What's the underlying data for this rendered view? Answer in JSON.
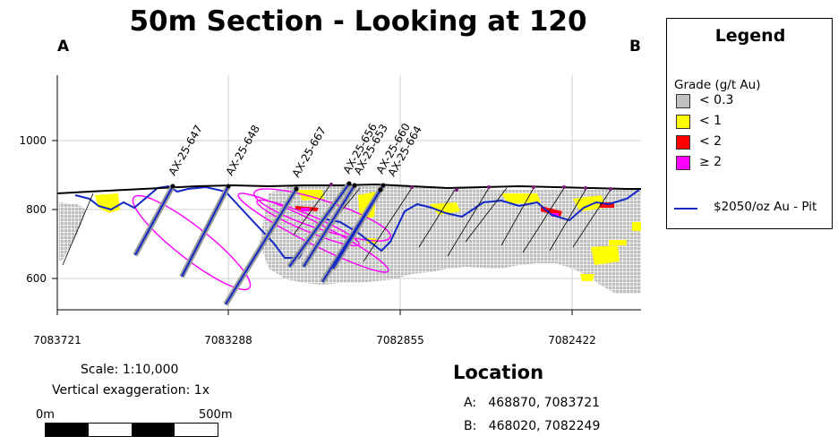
{
  "title": "50m Section - Looking at 120",
  "endpoints": {
    "start": "A",
    "end": "B"
  },
  "axes": {
    "y_ticks": [
      "1000",
      "800",
      "600"
    ],
    "x_ticks": [
      "7083721",
      "7083288",
      "7082855",
      "7082422"
    ]
  },
  "drillholes": [
    {
      "name": "AX-25-647"
    },
    {
      "name": "AX-25-648"
    },
    {
      "name": "AX-25-667"
    },
    {
      "name": "AX-25-656"
    },
    {
      "name": "AX-25-653"
    },
    {
      "name": "AX-25-660"
    },
    {
      "name": "AX-25-664"
    }
  ],
  "legend": {
    "title": "Legend",
    "subtitle": "Grade (g/t Au)",
    "items": [
      {
        "label": "< 0.3",
        "color": "#c0c0c0"
      },
      {
        "label": "< 1",
        "color": "#ffff00"
      },
      {
        "label": "< 2",
        "color": "#ff0000"
      },
      {
        "label": "≥ 2",
        "color": "#ff00ff"
      }
    ],
    "pit_label": "$2050/oz Au - Pit",
    "pit_color": "#1428c8"
  },
  "scale": {
    "text": "Scale: 1:10,000",
    "vertical": "Vertical exaggeration: 1x",
    "bar_start": "0m",
    "bar_end": "500m"
  },
  "location": {
    "title": "Location",
    "a": "A:   468870, 7083721",
    "b": "B:   468020, 7082249"
  }
}
